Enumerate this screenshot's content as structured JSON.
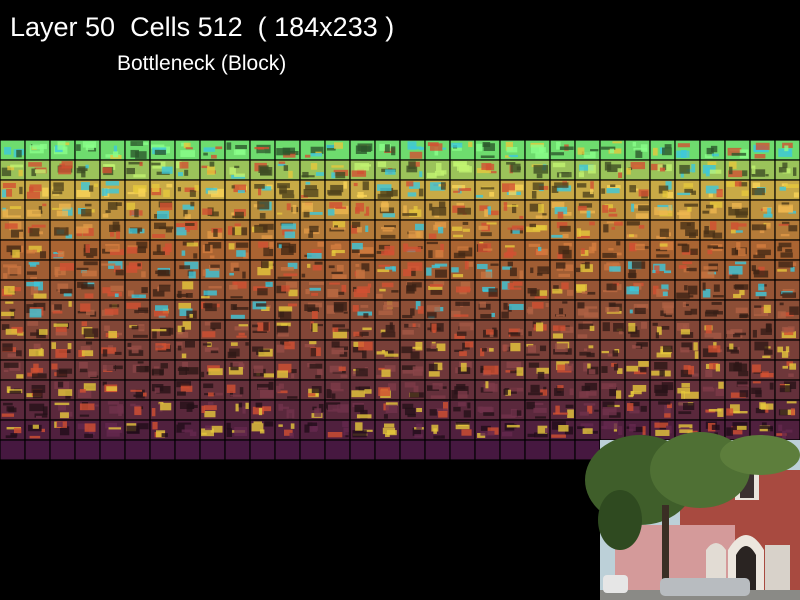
{
  "header": {
    "title": "Layer 50  Cells 512  ( 184x233 )",
    "subtitle": "Bottleneck (Block)"
  }
}
